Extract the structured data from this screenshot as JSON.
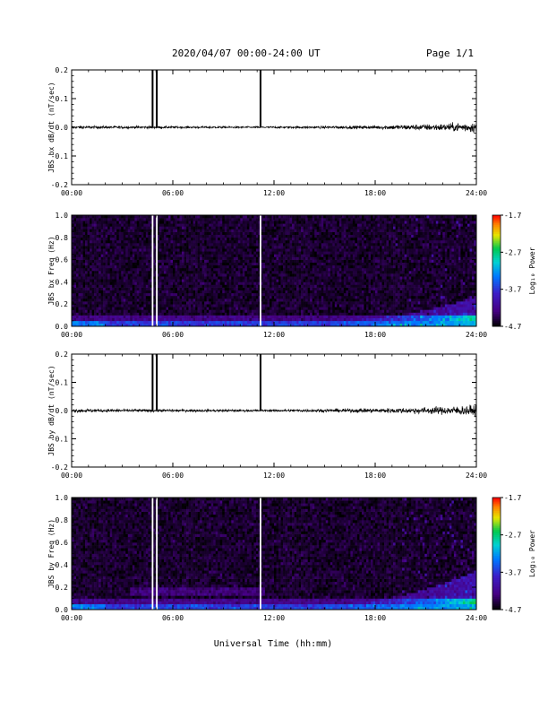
{
  "header": {
    "title": "2020/04/07  00:00-24:00 UT",
    "page": "Page 1/1"
  },
  "footer": {
    "xlabel": "Universal Time (hh:mm)"
  },
  "chart_data": [
    {
      "type": "line",
      "ylabel": "JBS bx dB/dt (nT/sec)",
      "xlim": [
        0,
        24
      ],
      "ylim": [
        -0.2,
        0.2
      ],
      "x_ticklabels": [
        "00:00",
        "06:00",
        "12:00",
        "18:00",
        "24:00"
      ],
      "y_ticklabels": [
        "0.2",
        "0.1",
        "0.0",
        "-0.1",
        "-0.2"
      ],
      "spikes_hours": [
        4.8,
        5.05,
        11.2
      ],
      "noise_envelope": {
        "x": [
          0,
          6,
          12,
          16,
          18,
          20,
          22,
          24
        ],
        "amplitude": [
          0.008,
          0.006,
          0.005,
          0.008,
          0.01,
          0.015,
          0.02,
          0.03
        ]
      }
    },
    {
      "type": "heatmap",
      "ylabel": "JBS bx Freq (Hz)",
      "xlim": [
        0,
        24
      ],
      "ylim": [
        0.0,
        1.0
      ],
      "x_ticklabels": [
        "00:00",
        "06:00",
        "12:00",
        "18:00",
        "24:00"
      ],
      "y_ticklabels": [
        "1.0",
        "0.8",
        "0.6",
        "0.4",
        "0.2",
        "0.0"
      ],
      "colorbar_label": "Log₁₀ Power",
      "colorbar_ticklabels": [
        "-1.7",
        "-2.7",
        "-3.7",
        "-4.7"
      ],
      "colorbar_range": [
        -4.7,
        -1.7
      ],
      "gaps_hours": [
        4.8,
        5.05,
        11.2
      ]
    },
    {
      "type": "line",
      "ylabel": "JBS by dB/dt (nT/sec)",
      "xlim": [
        0,
        24
      ],
      "ylim": [
        -0.2,
        0.2
      ],
      "x_ticklabels": [
        "00:00",
        "06:00",
        "12:00",
        "18:00",
        "24:00"
      ],
      "y_ticklabels": [
        "0.2",
        "0.1",
        "0.0",
        "-0.1",
        "-0.2"
      ],
      "spikes_hours": [
        4.8,
        5.05,
        11.2
      ],
      "noise_envelope": {
        "x": [
          0,
          6,
          12,
          16,
          18,
          20,
          22,
          24
        ],
        "amplitude": [
          0.01,
          0.007,
          0.006,
          0.01,
          0.012,
          0.016,
          0.022,
          0.03
        ]
      }
    },
    {
      "type": "heatmap",
      "ylabel": "JBS by Freq (Hz)",
      "xlim": [
        0,
        24
      ],
      "ylim": [
        0.0,
        1.0
      ],
      "x_ticklabels": [
        "00:00",
        "06:00",
        "12:00",
        "18:00",
        "24:00"
      ],
      "y_ticklabels": [
        "1.0",
        "0.8",
        "0.6",
        "0.4",
        "0.2",
        "0.0"
      ],
      "colorbar_label": "Log₁₀ Power",
      "colorbar_ticklabels": [
        "-1.7",
        "-2.7",
        "-3.7",
        "-4.7"
      ],
      "colorbar_range": [
        -4.7,
        -1.7
      ],
      "gaps_hours": [
        4.8,
        5.05,
        11.2
      ]
    }
  ]
}
